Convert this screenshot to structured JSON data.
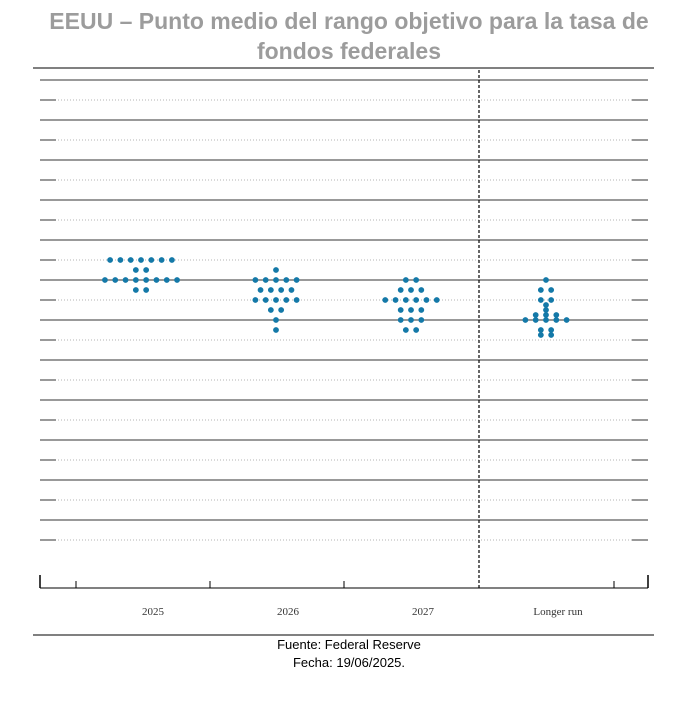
{
  "title_line1": "EEUU – Punto medio del rango objetivo para la tasa de",
  "title_line2": "fondos federales",
  "source": "Fuente: Federal Reserve",
  "date": "Fecha: 19/06/2025.",
  "chart_data": {
    "type": "scatter",
    "title": "EEUU – Punto medio del rango objetivo para la tasa de fondos federales",
    "categories": [
      "2025",
      "2026",
      "2027",
      "Longer run"
    ],
    "grid": true,
    "dot_color": "#1479a8",
    "columns": [
      {
        "category": "2025",
        "counts": [
          {
            "level": 24,
            "n": 0
          },
          {
            "level": 23,
            "n": 0
          },
          {
            "level": 22,
            "n": 0
          },
          {
            "level": 21,
            "n": 0
          },
          {
            "level": 20,
            "n": 0
          },
          {
            "level": 19,
            "n": 0
          },
          {
            "level": 18,
            "n": 0
          },
          {
            "level": 17,
            "n": 0
          },
          {
            "level": 16,
            "n": 0
          },
          {
            "level": 15,
            "n": 0
          },
          {
            "level": 14,
            "n": 0
          },
          {
            "level": 13,
            "n": 0
          },
          {
            "level": 12,
            "n": 0
          },
          {
            "level": 11,
            "n": 0
          },
          {
            "level": 10,
            "n": 0
          },
          {
            "level": 9,
            "n": 0
          },
          {
            "level": 8,
            "n": 0
          },
          {
            "level": 7,
            "n": 0
          },
          {
            "level": 6,
            "n": 7
          },
          {
            "level": 5,
            "n": 2
          },
          {
            "level": 4,
            "n": 8
          },
          {
            "level": 3,
            "n": 2
          }
        ]
      },
      {
        "category": "2026",
        "counts": [
          {
            "level": 5,
            "n": 1
          },
          {
            "level": 4,
            "n": 5
          },
          {
            "level": 3,
            "n": 4
          },
          {
            "level": 2,
            "n": 5
          },
          {
            "level": 1,
            "n": 2
          },
          {
            "level": 0,
            "n": 1
          },
          {
            "level": -1,
            "n": 1
          }
        ]
      },
      {
        "category": "2027",
        "counts": [
          {
            "level": 4,
            "n": 2
          },
          {
            "level": 3,
            "n": 3
          },
          {
            "level": 2,
            "n": 6
          },
          {
            "level": 1,
            "n": 3
          },
          {
            "level": 0,
            "n": 3
          },
          {
            "level": -1,
            "n": 2
          }
        ]
      },
      {
        "category": "Longer run",
        "counts": [
          {
            "level": 4,
            "n": 1
          },
          {
            "level": 3,
            "n": 2
          },
          {
            "level": 2,
            "n": 2
          },
          {
            "level": 1.5,
            "n": 1
          },
          {
            "level": 1,
            "n": 1
          },
          {
            "level": 0.5,
            "n": 3
          },
          {
            "level": 0,
            "n": 5
          },
          {
            "level": -1,
            "n": 2
          },
          {
            "level": -1.5,
            "n": 2
          }
        ]
      }
    ]
  }
}
